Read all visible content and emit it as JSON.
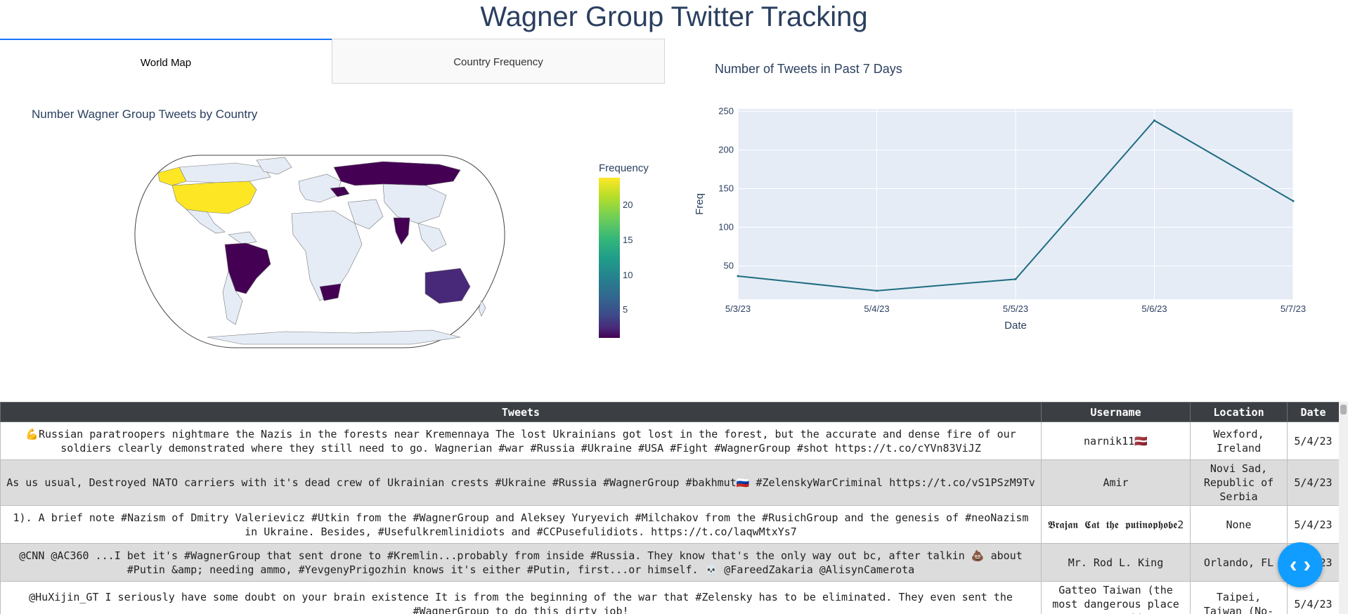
{
  "page": {
    "title": "Wagner Group Twitter Tracking"
  },
  "tabs": [
    {
      "label": "World Map"
    },
    {
      "label": "Country Frequency"
    }
  ],
  "map": {
    "title": "Number Wagner Group Tweets by Country",
    "colorbar_title": "Frequency",
    "colorbar_ticks": [
      "20",
      "15",
      "10",
      "5"
    ],
    "colors": {
      "high": "#fde725",
      "low": "#440154",
      "land": "#e5ecf6",
      "ocean": "#ffffff"
    }
  },
  "chart_data": {
    "type": "line",
    "title": "Number of Tweets in Past 7 Days",
    "xlabel": "Date",
    "ylabel": "Freq",
    "x": [
      "5/3/23",
      "5/4/23",
      "5/5/23",
      "5/6/23",
      "5/7/23"
    ],
    "values": [
      37,
      18,
      33,
      238,
      134
    ],
    "yticks": [
      50,
      100,
      150,
      200,
      250
    ],
    "ylim": [
      7,
      253
    ],
    "grid": true,
    "colors": {
      "line": "#1f6c80",
      "plot_bg": "#e5ecf6"
    }
  },
  "table": {
    "headers": [
      "Tweets",
      "Username",
      "Location",
      "Date"
    ],
    "rows": [
      [
        "💪Russian paratroopers nightmare the Nazis in the forests near Kremennaya The lost Ukrainians got lost in the forest, but the accurate and dense fire of our soldiers clearly demonstrated where they still need to go. Wagnerian #war #Russia #Ukraine #USA #Fight #WagnerGroup #shot https://t.co/cYVn83ViJZ",
        "narnik11🇱🇻",
        "Wexford, Ireland",
        "5/4/23"
      ],
      [
        "As us usual, Destroyed NATO carriers with it's dead crew of Ukrainian crests #Ukraine #Russia #WagnerGroup #bakhmut🇷🇺 #ZelenskyWarCriminal https://t.co/vS1PSzM9Tv",
        "Amir",
        "Novi Sad, Republic of Serbia",
        "5/4/23"
      ],
      [
        "1). A brief note #Nazism of Dmitry Valerievicz #Utkin from the #WagnerGroup and Aleksey Yuryevich #Milchakov from the #RusichGroup and the genesis of #neoNazism in Ukraine. Besides, #Usefulkremlinidiots and #CCPusefulidiots. https://t.co/laqwMtxYs7",
        "𝕭𝖗𝖆𝖏𝖆𝖓 𝕮𝖆𝖙 𝖙𝖍𝖊 𝖕𝖚𝖙𝖎𝖓𝖔𝖕𝖍𝖔𝖇𝖊2",
        "None",
        "5/4/23"
      ],
      [
        "@CNN @AC360 ...I bet it's #WagnerGroup that sent drone to #Kremlin...probably from inside #Russia. They know that's the only way out bc, after talkin 💩 about #Putin &amp; needing ammo, #YevgenyPrigozhin knows it's either #Putin, first...or himself. 💀 @FareedZakaria @AlisynCamerota",
        "Mr. Rod L. King",
        "Orlando, FL",
        "5/4/23"
      ],
      [
        "@HuXijin_GT I seriously have some doubt on your brain existence It is from the beginning of the war that #Zelensky has to be eliminated. They even sent the #WagnerGroup to do this dirty job!",
        "Gatteo Taiwan (the most dangerous place on earth)",
        "Taipei, Taiwan (No-",
        "5/4/23"
      ]
    ]
  },
  "fab": {
    "label": "‹ ›"
  }
}
